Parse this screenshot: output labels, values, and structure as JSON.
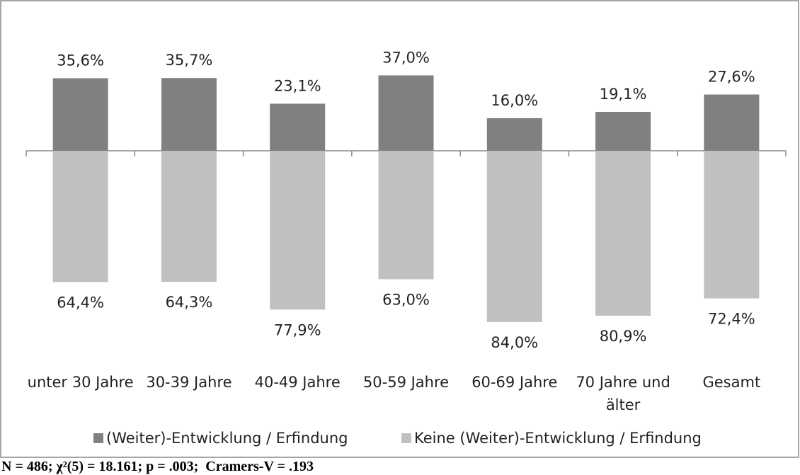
{
  "chart_data": {
    "type": "diverging-bar",
    "categories": [
      "unter 30 Jahre",
      "30-39 Jahre",
      "40-49 Jahre",
      "50-59 Jahre",
      "60-69 Jahre",
      "70 Jahre und älter",
      "Gesamt"
    ],
    "series": [
      {
        "name": "(Weiter)-Entwicklung / Erfindung",
        "color": "#808080",
        "direction": "up",
        "values": [
          35.6,
          35.7,
          23.1,
          37.0,
          16.0,
          19.1,
          27.6
        ],
        "value_labels": [
          "35,6%",
          "35,7%",
          "23,1%",
          "37,0%",
          "16,0%",
          "19,1%",
          "27,6%"
        ]
      },
      {
        "name": "Keine (Weiter)-Entwicklung / Erfindung",
        "color": "#c0c0c0",
        "direction": "down",
        "values": [
          64.4,
          64.3,
          77.9,
          63.0,
          84.0,
          80.9,
          72.4
        ],
        "value_labels": [
          "64,4%",
          "64,3%",
          "77,9%",
          "63,0%",
          "84,0%",
          "80,9%",
          "72,4%"
        ]
      }
    ],
    "legend": "bottom",
    "footnote": "N = 486; χ²(5) = 18.161; p = .003;  Cramers-V = .193"
  }
}
